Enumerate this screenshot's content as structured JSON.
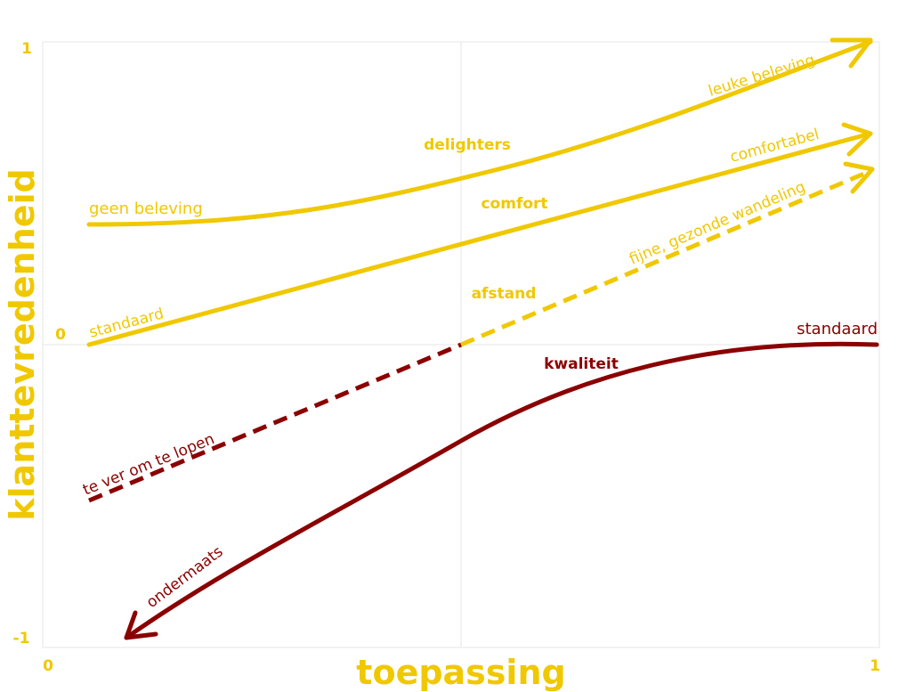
{
  "colors": {
    "yellow": "#F0C800",
    "darkred": "#8B0000",
    "grid": "#EEEEEE"
  },
  "axes": {
    "y_label": "klanttevredenheid",
    "x_label": "toepassing",
    "y_top": "1",
    "y_mid": "0",
    "y_bottom": "-1",
    "x_left": "0",
    "x_right": "1"
  },
  "curves": {
    "delighters": {
      "title": "delighters",
      "start_label": "geen beleving",
      "end_label": "leuke beleving"
    },
    "comfort": {
      "title": "comfort",
      "start_label": "standaard",
      "end_label": "comfortabel"
    },
    "afstand": {
      "title": "afstand",
      "start_label": "te ver om te lopen",
      "end_label": "fijne, gezonde wandeling"
    },
    "kwaliteit": {
      "title": "kwaliteit",
      "start_label": "ondermaats",
      "end_label": "standaard"
    }
  }
}
